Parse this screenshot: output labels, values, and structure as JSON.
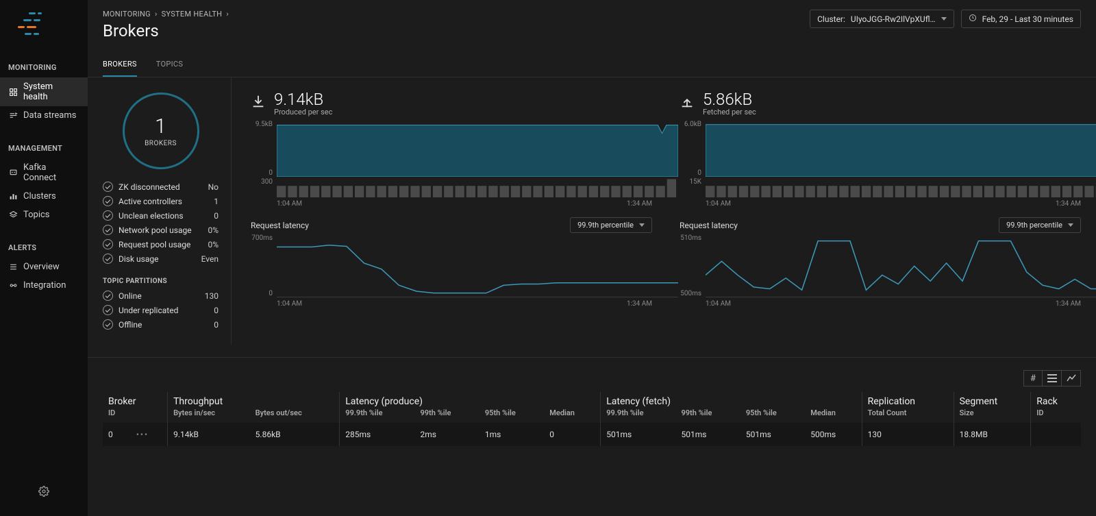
{
  "colors": {
    "accent": "#2b8aa8",
    "area_fill": "#184b5c",
    "line": "#3b98b8",
    "grid": "#3a3a3a",
    "bg": "#1c1c1c",
    "bar": "#4a4a4a"
  },
  "header": {
    "breadcrumbs": [
      "MONITORING",
      "SYSTEM HEALTH"
    ],
    "title": "Brokers",
    "cluster_label": "Cluster:",
    "cluster_value": "UIyoJGG-Rw2IlVpXUfl…",
    "time_range": "Feb, 29 - Last 30 minutes"
  },
  "sidebar": {
    "sections": [
      {
        "title": "MONITORING",
        "items": [
          {
            "label": "System health",
            "icon": "grid",
            "active": true
          },
          {
            "label": "Data streams",
            "icon": "flow",
            "active": false
          }
        ]
      },
      {
        "title": "MANAGEMENT",
        "items": [
          {
            "label": "Kafka Connect",
            "icon": "plug",
            "active": false
          },
          {
            "label": "Clusters",
            "icon": "bars",
            "active": false
          },
          {
            "label": "Topics",
            "icon": "layers",
            "active": false
          }
        ]
      },
      {
        "title": "ALERTS",
        "items": [
          {
            "label": "Overview",
            "icon": "list",
            "active": false
          },
          {
            "label": "Integration",
            "icon": "link",
            "active": false
          }
        ]
      }
    ]
  },
  "tabs": [
    {
      "label": "BROKERS",
      "active": true
    },
    {
      "label": "TOPICS",
      "active": false
    }
  ],
  "summary": {
    "ring": {
      "value": "1",
      "label": "BROKERS"
    },
    "status": [
      {
        "label": "ZK disconnected",
        "value": "No"
      },
      {
        "label": "Active controllers",
        "value": "1"
      },
      {
        "label": "Unclean elections",
        "value": "0"
      },
      {
        "label": "Network pool usage",
        "value": "0%"
      },
      {
        "label": "Request pool usage",
        "value": "0%"
      },
      {
        "label": "Disk usage",
        "value": "Even"
      }
    ],
    "partitions_title": "TOPIC PARTITIONS",
    "partitions": [
      {
        "label": "Online",
        "value": "130"
      },
      {
        "label": "Under replicated",
        "value": "0"
      },
      {
        "label": "Offline",
        "value": "0"
      }
    ]
  },
  "charts": {
    "x_start": "1:04 AM",
    "x_end": "1:34 AM",
    "produce": {
      "value": "9.14kB",
      "subtitle": "Produced per sec",
      "area": {
        "y_top": "9.5kB",
        "y_bottom": "0",
        "fill_level": 0.92,
        "dip_at": 0.96
      },
      "bars": {
        "y_top": "300",
        "count": 36,
        "heights": "flat_with_end_spike"
      }
    },
    "fetch": {
      "value": "5.86kB",
      "subtitle": "Fetched per sec",
      "area": {
        "y_top": "6.0kB",
        "y_bottom": "0",
        "fill_level": 0.93,
        "dip_at": null
      },
      "bars": {
        "y_top": "15K",
        "count": 36,
        "heights": "flat"
      }
    },
    "latency_title": "Request latency",
    "percentile_label": "99.9th percentile",
    "latency_produce": {
      "y_top": "700ms",
      "y_bottom": "0",
      "points": [
        0.82,
        0.82,
        0.82,
        0.85,
        0.83,
        0.55,
        0.45,
        0.18,
        0.08,
        0.05,
        0.05,
        0.05,
        0.05,
        0.18,
        0.2,
        0.2,
        0.22,
        0.22,
        0.22,
        0.22,
        0.22,
        0.22,
        0.22,
        0.22
      ]
    },
    "latency_fetch": {
      "y_top": "510ms",
      "y_bottom": "500ms",
      "points": [
        0.35,
        0.58,
        0.35,
        0.15,
        0.12,
        0.3,
        0.1,
        0.92,
        0.92,
        0.92,
        0.1,
        0.35,
        0.2,
        0.5,
        0.25,
        0.55,
        0.25,
        0.92,
        0.92,
        0.92,
        0.4,
        0.18,
        0.12,
        0.28,
        0.12,
        0.12
      ]
    }
  },
  "table": {
    "groups": [
      {
        "title": "Broker",
        "cols": [
          "ID"
        ]
      },
      {
        "title": "Throughput",
        "cols": [
          "Bytes in/sec",
          "Bytes out/sec"
        ]
      },
      {
        "title": "Latency (produce)",
        "cols": [
          "99.9th %ile",
          "99th %ile",
          "95th %ile",
          "Median"
        ]
      },
      {
        "title": "Latency (fetch)",
        "cols": [
          "99.9th %ile",
          "99th %ile",
          "95th %ile",
          "Median"
        ]
      },
      {
        "title": "Replication",
        "cols": [
          "Total Count"
        ]
      },
      {
        "title": "Segment",
        "cols": [
          "Size"
        ]
      },
      {
        "title": "Rack",
        "cols": [
          "ID"
        ]
      }
    ],
    "rows": [
      {
        "cells": [
          "0",
          "9.14kB",
          "5.86kB",
          "285ms",
          "2ms",
          "1ms",
          "0",
          "501ms",
          "501ms",
          "501ms",
          "500ms",
          "130",
          "18.8MB",
          ""
        ]
      }
    ]
  }
}
